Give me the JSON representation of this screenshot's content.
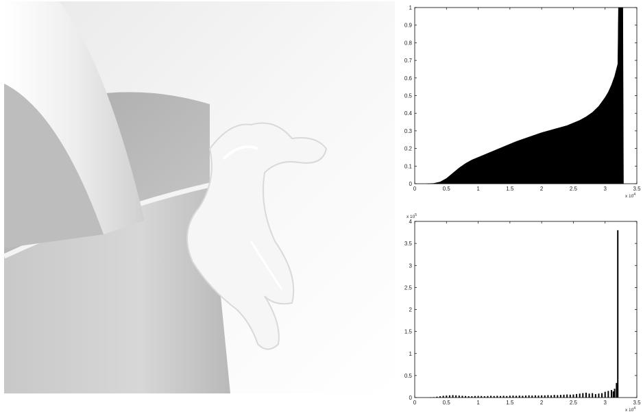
{
  "charts": {
    "cumulative": {
      "exponent_label": "x 10",
      "exponent_power": "4"
    },
    "histogram": {
      "exponent_label_x": "x 10",
      "exponent_power_x": "4",
      "exponent_label_y": "x 10",
      "exponent_power_y": "5"
    }
  },
  "chart_data": [
    {
      "type": "area",
      "title": "",
      "xlabel": "",
      "ylabel": "",
      "x_multiplier": 10000,
      "xlim": [
        0,
        3.5
      ],
      "ylim": [
        0,
        1
      ],
      "xticks": [
        "0",
        "0.5",
        "1",
        "1.5",
        "2",
        "2.5",
        "3",
        "3.5"
      ],
      "yticks": [
        "0",
        "0.1",
        "0.2",
        "0.3",
        "0.4",
        "0.5",
        "0.6",
        "0.7",
        "0.8",
        "0.9",
        "1"
      ],
      "grid": false,
      "fill_color": "#000000",
      "x": [
        0.2,
        0.3,
        0.4,
        0.5,
        0.6,
        0.7,
        0.8,
        0.9,
        1.0,
        1.2,
        1.4,
        1.6,
        1.8,
        2.0,
        2.2,
        2.4,
        2.5,
        2.6,
        2.7,
        2.8,
        2.9,
        3.0,
        3.05,
        3.1,
        3.15,
        3.2,
        3.21,
        3.28,
        3.29
      ],
      "y": [
        0.0,
        0.002,
        0.01,
        0.03,
        0.06,
        0.09,
        0.115,
        0.135,
        0.15,
        0.18,
        0.21,
        0.24,
        0.265,
        0.29,
        0.31,
        0.33,
        0.345,
        0.36,
        0.38,
        0.405,
        0.44,
        0.49,
        0.52,
        0.56,
        0.61,
        0.68,
        1.0,
        1.0,
        0.0
      ]
    },
    {
      "type": "bar",
      "title": "",
      "xlabel": "",
      "ylabel": "",
      "x_multiplier": 10000,
      "y_multiplier": 100000,
      "xlim": [
        0,
        3.5
      ],
      "ylim": [
        0,
        4
      ],
      "xticks": [
        "0",
        "0.5",
        "1",
        "1.5",
        "2",
        "2.5",
        "3",
        "3.5"
      ],
      "yticks": [
        "0",
        "0.5",
        "1",
        "1.5",
        "2",
        "2.5",
        "3",
        "3.5",
        "4"
      ],
      "grid": false,
      "bar_color": "#000000",
      "x": [
        0.25,
        0.3,
        0.35,
        0.4,
        0.45,
        0.5,
        0.55,
        0.6,
        0.65,
        0.7,
        0.75,
        0.8,
        0.85,
        0.9,
        0.95,
        1.0,
        1.05,
        1.1,
        1.15,
        1.2,
        1.25,
        1.3,
        1.35,
        1.4,
        1.45,
        1.5,
        1.55,
        1.6,
        1.65,
        1.7,
        1.75,
        1.8,
        1.85,
        1.9,
        1.95,
        2.0,
        2.05,
        2.1,
        2.15,
        2.2,
        2.25,
        2.3,
        2.35,
        2.4,
        2.45,
        2.5,
        2.55,
        2.6,
        2.65,
        2.7,
        2.75,
        2.8,
        2.85,
        2.9,
        2.95,
        3.0,
        3.05,
        3.1,
        3.13,
        3.15,
        3.18,
        3.2
      ],
      "values": [
        0.005,
        0.01,
        0.02,
        0.03,
        0.04,
        0.045,
        0.05,
        0.055,
        0.05,
        0.045,
        0.04,
        0.035,
        0.03,
        0.03,
        0.035,
        0.03,
        0.035,
        0.03,
        0.035,
        0.04,
        0.035,
        0.04,
        0.035,
        0.04,
        0.035,
        0.04,
        0.045,
        0.04,
        0.045,
        0.04,
        0.045,
        0.05,
        0.045,
        0.05,
        0.045,
        0.05,
        0.05,
        0.055,
        0.05,
        0.06,
        0.055,
        0.06,
        0.065,
        0.07,
        0.065,
        0.07,
        0.08,
        0.09,
        0.1,
        0.11,
        0.09,
        0.1,
        0.08,
        0.09,
        0.1,
        0.13,
        0.15,
        0.17,
        0.14,
        0.2,
        0.33,
        3.8
      ]
    }
  ]
}
